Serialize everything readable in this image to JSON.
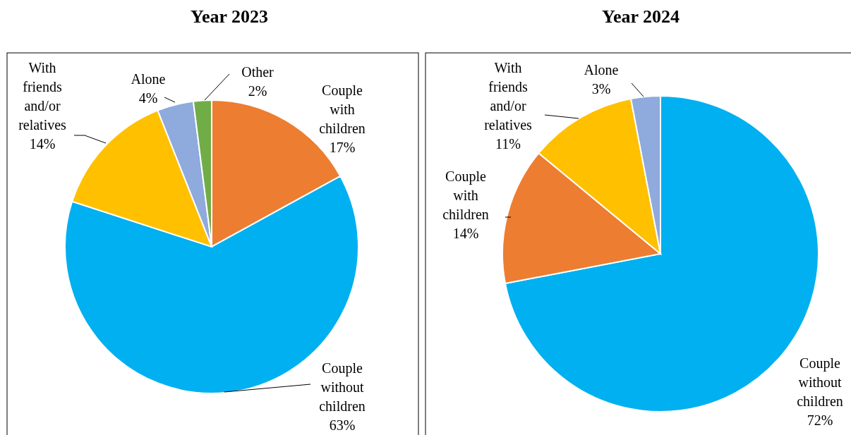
{
  "chart_data": [
    {
      "type": "pie",
      "title": "Year 2023",
      "categories": [
        "Couple with children",
        "Couple without children",
        "With friends and/or relatives",
        "Alone",
        "Other"
      ],
      "values": [
        17,
        63,
        14,
        4,
        2
      ],
      "value_labels": [
        "17%",
        "63%",
        "14%",
        "4%",
        "2%"
      ],
      "colors": [
        "#ed7d31",
        "#00b0f0",
        "#ffc000",
        "#8faadc",
        "#70ad47"
      ]
    },
    {
      "type": "pie",
      "title": "Year 2024",
      "categories": [
        "Couple without children",
        "Couple with children",
        "With friends and/or relatives",
        "Alone"
      ],
      "values": [
        72,
        14,
        11,
        3
      ],
      "value_labels": [
        "72%",
        "14%",
        "11%",
        "3%"
      ],
      "colors": [
        "#00b0f0",
        "#ed7d31",
        "#ffc000",
        "#8faadc"
      ]
    }
  ]
}
